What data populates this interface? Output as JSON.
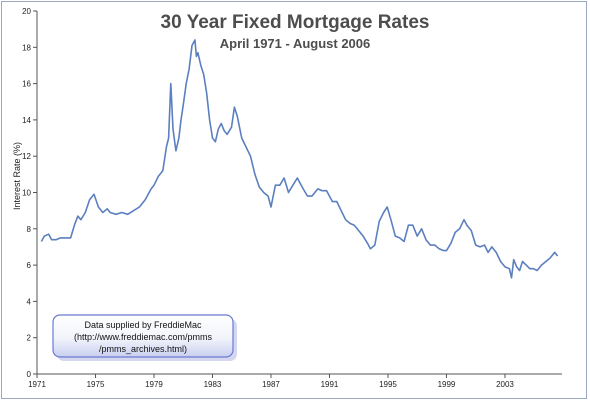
{
  "chart_data": {
    "type": "line",
    "title": "30 Year Fixed Mortgage Rates",
    "subtitle": "April 1971 - August 2006",
    "xlabel": "",
    "ylabel": "Interest Rate (%)",
    "x_ticks": [
      "1971",
      "1975",
      "1979",
      "1983",
      "1987",
      "1991",
      "1995",
      "1999",
      "2003"
    ],
    "y_ticks": [
      "0",
      "2",
      "4",
      "6",
      "8",
      "10",
      "12",
      "14",
      "16",
      "18",
      "20"
    ],
    "xlim": [
      1971,
      2006.9
    ],
    "ylim": [
      0,
      20
    ],
    "grid": false,
    "legend": "none",
    "line_color": "#5b7fbf",
    "annotation": {
      "line1": "Data supplied by FreddieMac",
      "line2": "(http://www.freddiemac.com/pmms",
      "line3": "/pmms_archives.html)"
    },
    "series": [
      {
        "x": [
          1971.3,
          1971.5,
          1971.8,
          1972.0,
          1972.3,
          1972.6,
          1973.0,
          1973.3,
          1973.6,
          1973.8,
          1974.0,
          1974.3,
          1974.6,
          1974.9,
          1975.2,
          1975.5,
          1975.8,
          1976.0,
          1976.4,
          1976.8,
          1977.2,
          1977.6,
          1978.0,
          1978.4,
          1978.8,
          1979.0,
          1979.3,
          1979.6,
          1979.85,
          1980.0,
          1980.15,
          1980.3,
          1980.5,
          1980.7,
          1980.85,
          1981.0,
          1981.2,
          1981.4,
          1981.6,
          1981.8,
          1981.9,
          1982.0,
          1982.2,
          1982.4,
          1982.6,
          1982.8,
          1983.0,
          1983.2,
          1983.4,
          1983.6,
          1983.8,
          1984.0,
          1984.3,
          1984.5,
          1984.7,
          1985.0,
          1985.3,
          1985.6,
          1985.9,
          1986.2,
          1986.5,
          1986.8,
          1987.0,
          1987.3,
          1987.6,
          1987.9,
          1988.2,
          1988.5,
          1988.8,
          1989.2,
          1989.5,
          1989.8,
          1990.2,
          1990.5,
          1990.8,
          1991.2,
          1991.5,
          1991.8,
          1992.1,
          1992.4,
          1992.7,
          1993.0,
          1993.3,
          1993.6,
          1993.8,
          1994.1,
          1994.4,
          1994.7,
          1994.95,
          1995.2,
          1995.5,
          1995.8,
          1996.1,
          1996.4,
          1996.7,
          1997.0,
          1997.3,
          1997.6,
          1997.9,
          1998.2,
          1998.5,
          1998.8,
          1999.0,
          1999.3,
          1999.6,
          1999.9,
          2000.2,
          2000.4,
          2000.7,
          2001.0,
          2001.3,
          2001.6,
          2001.85,
          2002.1,
          2002.4,
          2002.7,
          2003.0,
          2003.3,
          2003.45,
          2003.6,
          2003.8,
          2004.0,
          2004.2,
          2004.45,
          2004.7,
          2004.95,
          2005.2,
          2005.5,
          2005.8,
          2006.1,
          2006.4,
          2006.6
        ],
        "y": [
          7.3,
          7.6,
          7.7,
          7.4,
          7.4,
          7.5,
          7.5,
          7.5,
          8.3,
          8.7,
          8.5,
          8.9,
          9.6,
          9.9,
          9.2,
          8.9,
          9.1,
          8.9,
          8.8,
          8.9,
          8.8,
          9.0,
          9.2,
          9.6,
          10.2,
          10.4,
          10.9,
          11.2,
          12.5,
          13.0,
          16.0,
          13.5,
          12.3,
          13.0,
          14.0,
          14.8,
          16.0,
          16.8,
          18.1,
          18.4,
          17.5,
          17.7,
          17.0,
          16.5,
          15.5,
          14.0,
          13.0,
          12.8,
          13.5,
          13.8,
          13.4,
          13.2,
          13.6,
          14.7,
          14.2,
          13.0,
          12.5,
          12.0,
          11.0,
          10.3,
          10.0,
          9.8,
          9.2,
          10.4,
          10.4,
          10.8,
          10.0,
          10.4,
          10.8,
          10.2,
          9.8,
          9.8,
          10.2,
          10.1,
          10.1,
          9.5,
          9.5,
          9.0,
          8.5,
          8.3,
          8.2,
          7.9,
          7.6,
          7.2,
          6.9,
          7.1,
          8.4,
          8.9,
          9.2,
          8.5,
          7.6,
          7.5,
          7.3,
          8.2,
          8.2,
          7.6,
          8.0,
          7.4,
          7.1,
          7.1,
          6.9,
          6.8,
          6.8,
          7.2,
          7.8,
          8.0,
          8.5,
          8.2,
          7.9,
          7.1,
          7.0,
          7.1,
          6.7,
          7.0,
          6.7,
          6.2,
          5.9,
          5.8,
          5.3,
          6.3,
          5.9,
          5.7,
          6.2,
          6.0,
          5.8,
          5.8,
          5.7,
          6.0,
          6.2,
          6.4,
          6.7,
          6.5
        ]
      }
    ]
  }
}
